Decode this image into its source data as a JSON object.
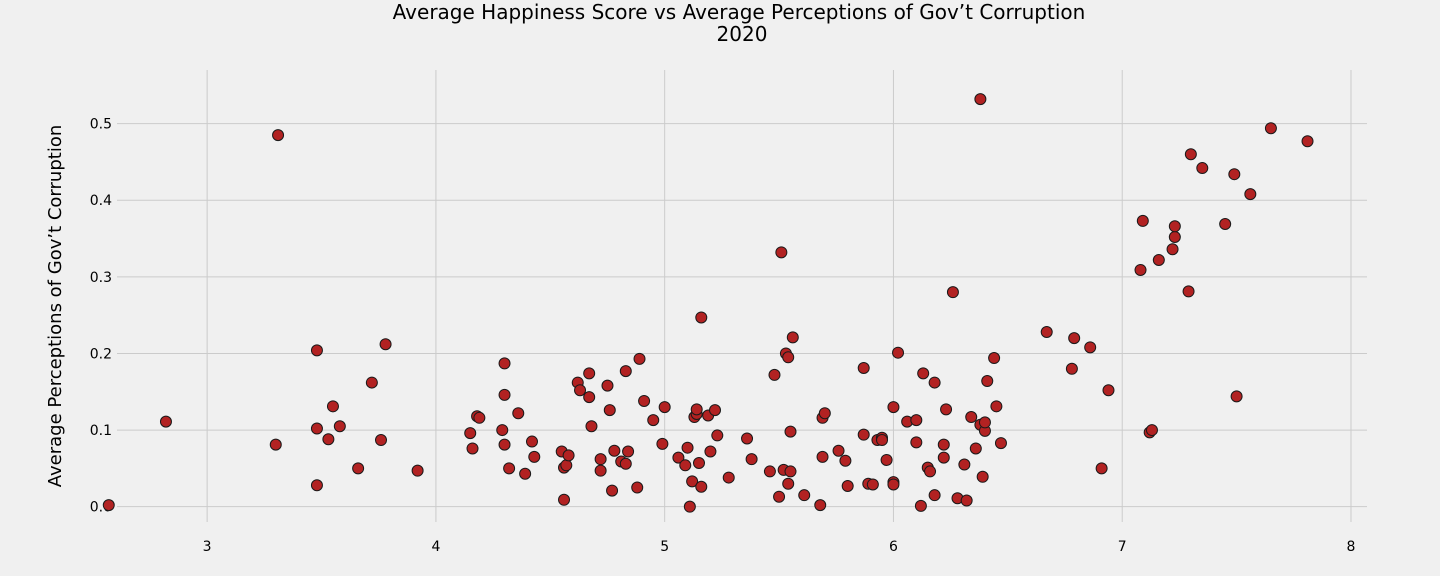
{
  "chart_data": {
    "type": "scatter",
    "title": "Average Happiness Score vs Average Perceptions of Gov’t Corruption",
    "subtitle": "2020",
    "xlabel": "",
    "ylabel": "Average Perceptions of Gov’t Corruption",
    "xlim": [
      2.3,
      8.07
    ],
    "ylim": [
      -0.02,
      0.57
    ],
    "xticks": [
      3,
      4,
      5,
      6,
      7,
      8
    ],
    "yticks": [
      0.0,
      0.1,
      0.2,
      0.3,
      0.4,
      0.5
    ],
    "xtick_labels": [
      "3",
      "4",
      "5",
      "6",
      "7",
      "8"
    ],
    "ytick_labels": [
      "0.0",
      "0.1",
      "0.2",
      "0.3",
      "0.4",
      "0.5"
    ],
    "grid": true,
    "point_color": "#b22222",
    "edge_color": "#1a1a1a",
    "background": "#f0f0f0",
    "points": [
      [
        2.57,
        0.002
      ],
      [
        2.82,
        0.111
      ],
      [
        3.3,
        0.081
      ],
      [
        3.31,
        0.485
      ],
      [
        3.48,
        0.204
      ],
      [
        3.48,
        0.102
      ],
      [
        3.48,
        0.028
      ],
      [
        3.53,
        0.088
      ],
      [
        3.55,
        0.131
      ],
      [
        3.58,
        0.105
      ],
      [
        3.66,
        0.05
      ],
      [
        3.72,
        0.162
      ],
      [
        3.76,
        0.087
      ],
      [
        3.78,
        0.212
      ],
      [
        3.92,
        0.047
      ],
      [
        4.15,
        0.096
      ],
      [
        4.16,
        0.076
      ],
      [
        4.18,
        0.118
      ],
      [
        4.19,
        0.116
      ],
      [
        4.29,
        0.1
      ],
      [
        4.3,
        0.187
      ],
      [
        4.3,
        0.146
      ],
      [
        4.3,
        0.081
      ],
      [
        4.32,
        0.05
      ],
      [
        4.36,
        0.122
      ],
      [
        4.39,
        0.043
      ],
      [
        4.42,
        0.085
      ],
      [
        4.43,
        0.065
      ],
      [
        4.55,
        0.072
      ],
      [
        4.56,
        0.051
      ],
      [
        4.56,
        0.009
      ],
      [
        4.57,
        0.054
      ],
      [
        4.58,
        0.067
      ],
      [
        4.62,
        0.162
      ],
      [
        4.63,
        0.152
      ],
      [
        4.67,
        0.143
      ],
      [
        4.67,
        0.174
      ],
      [
        4.68,
        0.105
      ],
      [
        4.72,
        0.062
      ],
      [
        4.72,
        0.047
      ],
      [
        4.75,
        0.158
      ],
      [
        4.76,
        0.126
      ],
      [
        4.77,
        0.021
      ],
      [
        4.78,
        0.073
      ],
      [
        4.81,
        0.059
      ],
      [
        4.83,
        0.056
      ],
      [
        4.83,
        0.177
      ],
      [
        4.84,
        0.072
      ],
      [
        4.88,
        0.025
      ],
      [
        4.89,
        0.193
      ],
      [
        4.91,
        0.138
      ],
      [
        4.95,
        0.113
      ],
      [
        4.99,
        0.082
      ],
      [
        5.0,
        0.13
      ],
      [
        5.06,
        0.064
      ],
      [
        5.09,
        0.054
      ],
      [
        5.1,
        0.077
      ],
      [
        5.11,
        0.0
      ],
      [
        5.12,
        0.033
      ],
      [
        5.13,
        0.117
      ],
      [
        5.14,
        0.121
      ],
      [
        5.14,
        0.127
      ],
      [
        5.15,
        0.057
      ],
      [
        5.16,
        0.026
      ],
      [
        5.16,
        0.247
      ],
      [
        5.19,
        0.119
      ],
      [
        5.2,
        0.072
      ],
      [
        5.22,
        0.126
      ],
      [
        5.23,
        0.093
      ],
      [
        5.28,
        0.038
      ],
      [
        5.36,
        0.089
      ],
      [
        5.38,
        0.062
      ],
      [
        5.46,
        0.046
      ],
      [
        5.48,
        0.172
      ],
      [
        5.5,
        0.013
      ],
      [
        5.51,
        0.332
      ],
      [
        5.52,
        0.048
      ],
      [
        5.53,
        0.2
      ],
      [
        5.54,
        0.195
      ],
      [
        5.54,
        0.03
      ],
      [
        5.55,
        0.046
      ],
      [
        5.55,
        0.098
      ],
      [
        5.56,
        0.221
      ],
      [
        5.61,
        0.015
      ],
      [
        5.68,
        0.002
      ],
      [
        5.69,
        0.065
      ],
      [
        5.69,
        0.116
      ],
      [
        5.7,
        0.122
      ],
      [
        5.76,
        0.073
      ],
      [
        5.79,
        0.06
      ],
      [
        5.8,
        0.027
      ],
      [
        5.87,
        0.094
      ],
      [
        5.87,
        0.181
      ],
      [
        5.89,
        0.03
      ],
      [
        5.91,
        0.029
      ],
      [
        5.93,
        0.087
      ],
      [
        5.95,
        0.09
      ],
      [
        5.95,
        0.087
      ],
      [
        5.97,
        0.061
      ],
      [
        6.0,
        0.13
      ],
      [
        6.0,
        0.032
      ],
      [
        6.0,
        0.029
      ],
      [
        6.02,
        0.201
      ],
      [
        6.06,
        0.111
      ],
      [
        6.1,
        0.113
      ],
      [
        6.1,
        0.084
      ],
      [
        6.12,
        0.001
      ],
      [
        6.13,
        0.174
      ],
      [
        6.15,
        0.051
      ],
      [
        6.16,
        0.046
      ],
      [
        6.18,
        0.162
      ],
      [
        6.18,
        0.015
      ],
      [
        6.22,
        0.081
      ],
      [
        6.22,
        0.064
      ],
      [
        6.23,
        0.127
      ],
      [
        6.26,
        0.28
      ],
      [
        6.28,
        0.011
      ],
      [
        6.31,
        0.055
      ],
      [
        6.32,
        0.008
      ],
      [
        6.34,
        0.117
      ],
      [
        6.36,
        0.076
      ],
      [
        6.38,
        0.107
      ],
      [
        6.38,
        0.532
      ],
      [
        6.39,
        0.039
      ],
      [
        6.4,
        0.099
      ],
      [
        6.4,
        0.11
      ],
      [
        6.41,
        0.164
      ],
      [
        6.44,
        0.194
      ],
      [
        6.45,
        0.131
      ],
      [
        6.47,
        0.083
      ],
      [
        6.67,
        0.228
      ],
      [
        6.78,
        0.18
      ],
      [
        6.79,
        0.22
      ],
      [
        6.86,
        0.208
      ],
      [
        6.91,
        0.05
      ],
      [
        6.94,
        0.152
      ],
      [
        7.08,
        0.309
      ],
      [
        7.09,
        0.373
      ],
      [
        7.12,
        0.097
      ],
      [
        7.13,
        0.1
      ],
      [
        7.16,
        0.322
      ],
      [
        7.22,
        0.336
      ],
      [
        7.23,
        0.352
      ],
      [
        7.23,
        0.366
      ],
      [
        7.29,
        0.281
      ],
      [
        7.3,
        0.46
      ],
      [
        7.35,
        0.442
      ],
      [
        7.45,
        0.369
      ],
      [
        7.49,
        0.434
      ],
      [
        7.5,
        0.144
      ],
      [
        7.56,
        0.408
      ],
      [
        7.65,
        0.494
      ],
      [
        7.81,
        0.477
      ]
    ]
  }
}
